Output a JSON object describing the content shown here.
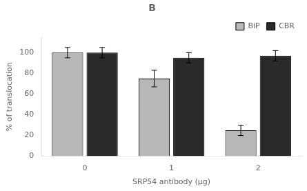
{
  "chart_data": {
    "type": "bar",
    "title": "B",
    "categories": [
      0,
      1,
      2
    ],
    "series": [
      {
        "name": "BiP",
        "color": "#b8b8b8",
        "values": [
          100,
          75,
          25
        ],
        "errors": [
          5,
          8,
          5
        ]
      },
      {
        "name": "CBR",
        "color": "#2a2a2a",
        "values": [
          100,
          95,
          97
        ],
        "errors": [
          5,
          5,
          5
        ]
      }
    ],
    "xlabel": "SRP54 antibody (μg)",
    "ylabel": "% of translocation",
    "ylim": [
      0,
      115
    ],
    "yticks": [
      0,
      20,
      40,
      60,
      80,
      100
    ],
    "grid": false,
    "legend": "upper right"
  }
}
